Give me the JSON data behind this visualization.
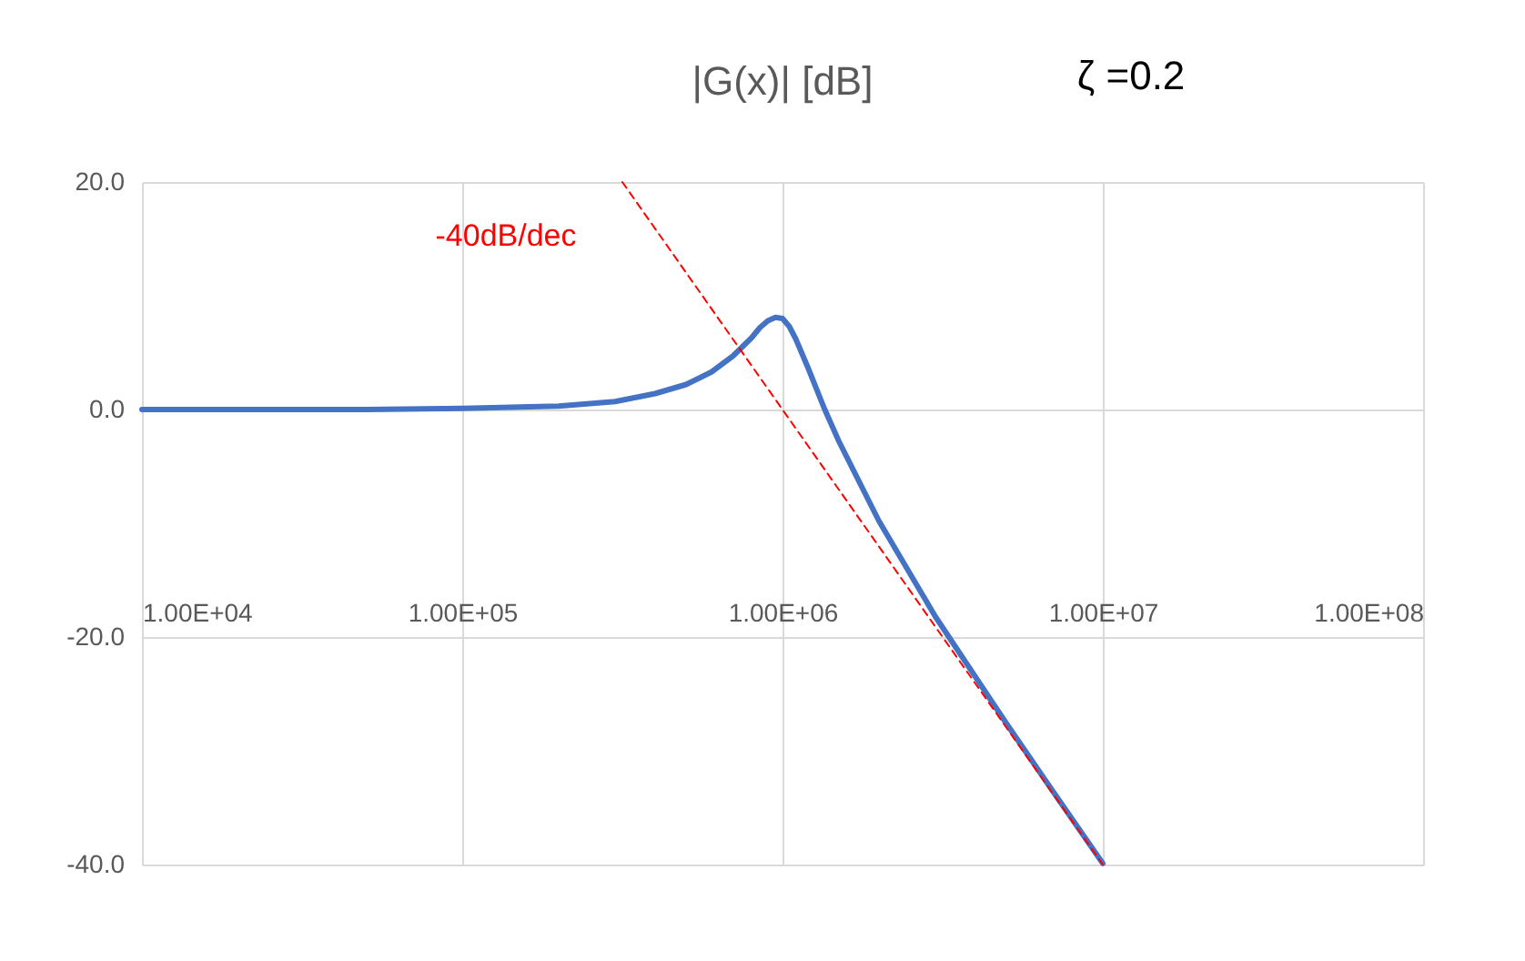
{
  "chart_data": {
    "type": "line",
    "title": "|G(x)| [dB]",
    "annotations": [
      "ζ =0.2",
      "-40dB/dec"
    ],
    "series": [
      {
        "color": "#4472c4",
        "x": [
          10000,
          20000,
          50000,
          100000,
          200000,
          300000,
          400000,
          500000,
          600000,
          700000,
          800000,
          850000,
          900000,
          950000,
          1000000,
          1050000,
          1100000,
          1200000,
          1350000,
          1500000,
          2000000,
          3000000,
          5000000,
          7000000,
          10000000
        ],
        "values": [
          0.0,
          0.0,
          0.0,
          0.1,
          0.3,
          0.7,
          1.4,
          2.2,
          3.3,
          4.7,
          6.3,
          7.2,
          7.8,
          8.1,
          8.0,
          7.3,
          6.2,
          3.7,
          0.1,
          -2.8,
          -9.8,
          -18.2,
          -27.6,
          -33.6,
          -39.9
        ]
      },
      {
        "color": "#ff0000",
        "line_style": "dashed",
        "x": [
          316000,
          10000000
        ],
        "values": [
          20.0,
          -40.0
        ]
      }
    ],
    "log": "x",
    "xlim": [
      10000,
      100000000
    ],
    "xticks": [
      {
        "value": 10000,
        "label": "1.00E+04"
      },
      {
        "value": 100000,
        "label": "1.00E+05"
      },
      {
        "value": 1000000,
        "label": "1.00E+06"
      },
      {
        "value": 10000000,
        "label": "1.00E+07"
      },
      {
        "value": 100000000,
        "label": "1.00E+08"
      }
    ],
    "ylim": [
      -40,
      20
    ],
    "yticks": [
      {
        "value": -40,
        "label": "-40.0"
      },
      {
        "value": -20,
        "label": "-20.0"
      },
      {
        "value": 0,
        "label": "0.0"
      },
      {
        "value": 20,
        "label": "20.0"
      }
    ],
    "grid": true,
    "marker": "none"
  }
}
